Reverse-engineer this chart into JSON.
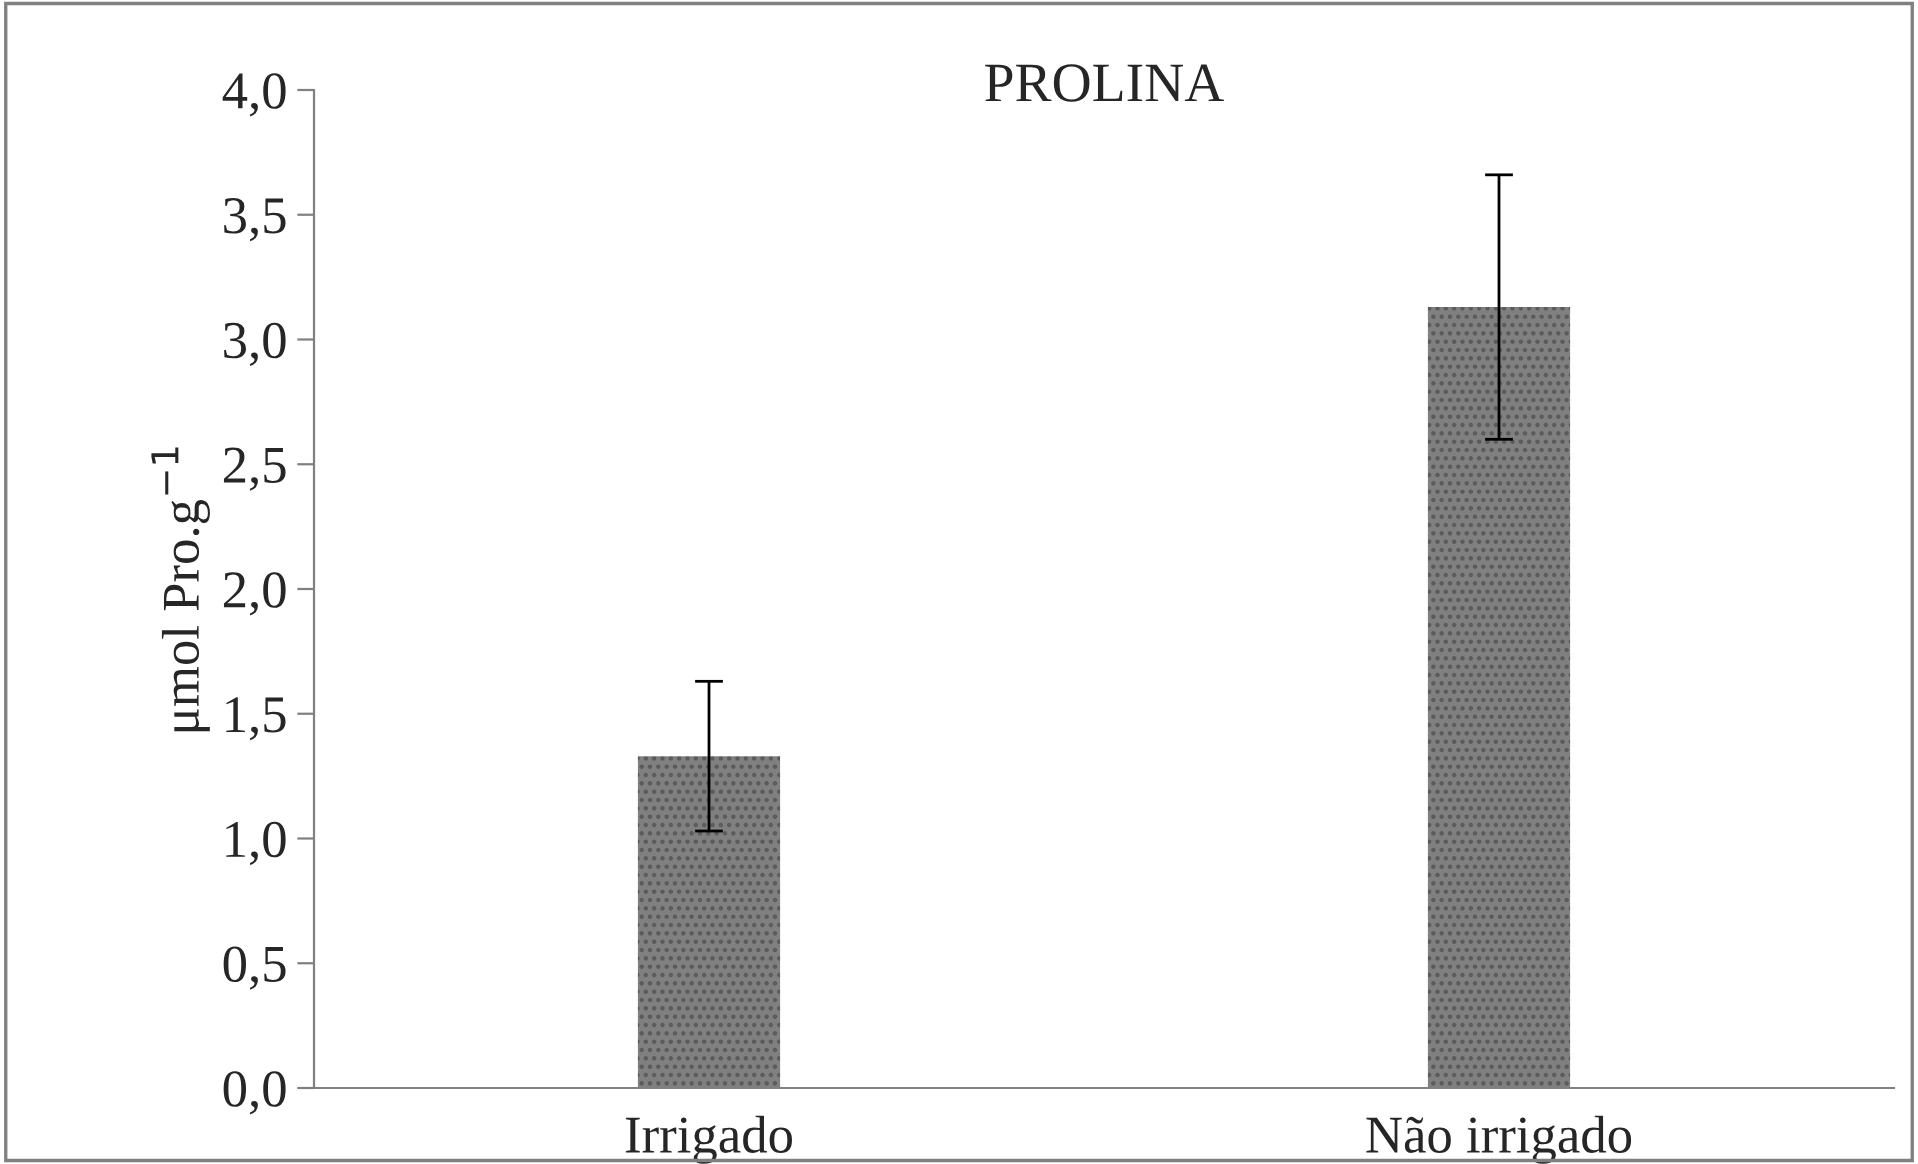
{
  "chart_data": {
    "type": "bar",
    "title": "PROLINA",
    "ylabel": "μmol Pro.g$^{−1}$",
    "categories": [
      "Irrigado",
      "Não irrigado"
    ],
    "values": [
      1.33,
      3.13
    ],
    "errors": [
      0.3,
      0.53
    ],
    "color": "#808080",
    "ylim": [
      0,
      4
    ],
    "yticks": [
      {
        "value": 0,
        "label": "0,0"
      },
      {
        "value": 0.5,
        "label": "0,5"
      },
      {
        "value": 1,
        "label": "1,0"
      },
      {
        "value": 1.5,
        "label": "1,5"
      },
      {
        "value": 2,
        "label": "2,0"
      },
      {
        "value": 2.5,
        "label": "2,5"
      },
      {
        "value": 3,
        "label": "3,0"
      },
      {
        "value": 3.5,
        "label": "3,5"
      },
      {
        "value": 4,
        "label": "4,0"
      }
    ],
    "grid": false,
    "legend": false
  }
}
